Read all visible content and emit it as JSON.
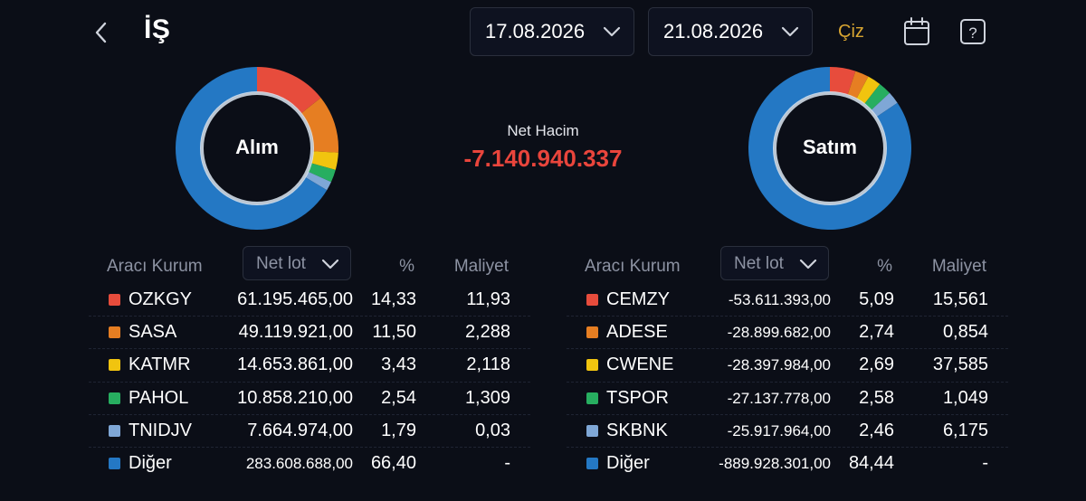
{
  "header": {
    "title": "İŞ",
    "start_date": "17.08.2026",
    "end_date": "21.08.2026",
    "draw_label": "Çiz",
    "icons": [
      "chevron-left-icon",
      "calendar-icon",
      "help-icon"
    ]
  },
  "summary": {
    "net_label": "Net Hacim",
    "net_value": "-7.140.940.337",
    "net_color": "#e9453c"
  },
  "colors": {
    "red": "#e74c3c",
    "orange": "#e67e22",
    "yellow": "#f1c40f",
    "green": "#27ae60",
    "lightblue": "#7fa7d6",
    "blue": "#2478c4"
  },
  "buy": {
    "label": "Alım",
    "slices": [
      14.33,
      11.5,
      3.43,
      2.54,
      1.79,
      66.4
    ],
    "table": {
      "col_broker": "Aracı Kurum",
      "col_select": "Net lot",
      "col_pct": "%",
      "col_cost": "Maliyet",
      "rows": [
        {
          "name": "OZKGY",
          "lot": "61.195.465,00",
          "pct": "14,33",
          "cost": "11,93"
        },
        {
          "name": "SASA",
          "lot": "49.119.921,00",
          "pct": "11,50",
          "cost": "2,288"
        },
        {
          "name": "KATMR",
          "lot": "14.653.861,00",
          "pct": "3,43",
          "cost": "2,118"
        },
        {
          "name": "PAHOL",
          "lot": "10.858.210,00",
          "pct": "2,54",
          "cost": "1,309"
        },
        {
          "name": "TNIDJV",
          "lot": "7.664.974,00",
          "pct": "1,79",
          "cost": "0,03"
        },
        {
          "name": "Diğer",
          "lot": "283.608.688,00",
          "pct": "66,40",
          "cost": "-"
        }
      ]
    }
  },
  "sell": {
    "label": "Satım",
    "slices": [
      5.09,
      2.74,
      2.69,
      2.58,
      2.46,
      84.44
    ],
    "table": {
      "col_broker": "Aracı Kurum",
      "col_select": "Net lot",
      "col_pct": "%",
      "col_cost": "Maliyet",
      "rows": [
        {
          "name": "CEMZY",
          "lot": "-53.611.393,00",
          "pct": "5,09",
          "cost": "15,561"
        },
        {
          "name": "ADESE",
          "lot": "-28.899.682,00",
          "pct": "2,74",
          "cost": "0,854"
        },
        {
          "name": "CWENE",
          "lot": "-28.397.984,00",
          "pct": "2,69",
          "cost": "37,585"
        },
        {
          "name": "TSPOR",
          "lot": "-27.137.778,00",
          "pct": "2,58",
          "cost": "1,049"
        },
        {
          "name": "SKBNK",
          "lot": "-25.917.964,00",
          "pct": "2,46",
          "cost": "6,175"
        },
        {
          "name": "Diğer",
          "lot": "-889.928.301,00",
          "pct": "84,44",
          "cost": "-"
        }
      ]
    }
  }
}
